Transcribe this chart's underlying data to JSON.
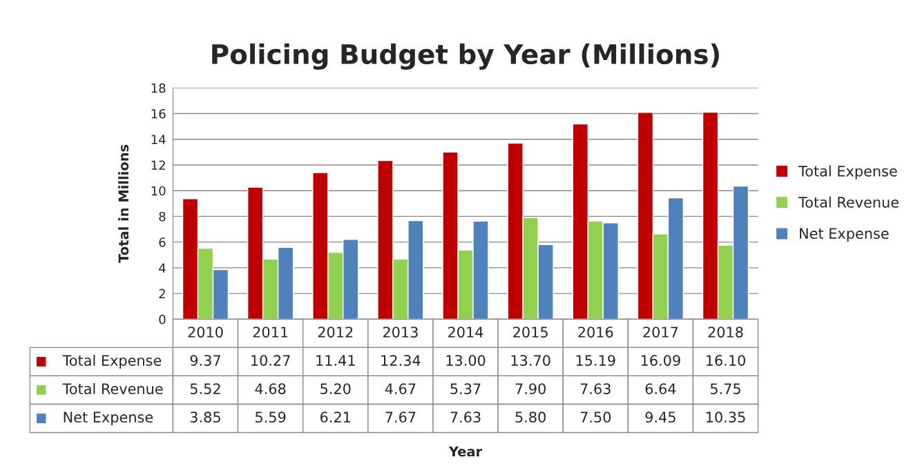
{
  "chart_data": {
    "type": "bar",
    "title": "Policing Budget by Year (Millions)",
    "annotations": [
      "Year"
    ],
    "ylabel": "Total in Millions",
    "categories": [
      "2010",
      "2011",
      "2012",
      "2013",
      "2014",
      "2015",
      "2016",
      "2017",
      "2018"
    ],
    "series": [
      {
        "name": "Total Expense",
        "color": "#c00000",
        "values": [
          9.37,
          10.27,
          11.41,
          12.34,
          13.0,
          13.7,
          15.19,
          16.09,
          16.1
        ],
        "value_labels": [
          "9.37",
          "10.27",
          "11.41",
          "12.34",
          "13.00",
          "13.70",
          "15.19",
          "16.09",
          "16.10"
        ]
      },
      {
        "name": "Total Revenue",
        "color": "#92d050",
        "values": [
          5.52,
          4.68,
          5.2,
          4.67,
          5.37,
          7.9,
          7.63,
          6.64,
          5.75
        ],
        "value_labels": [
          "5.52",
          "4.68",
          "5.20",
          "4.67",
          "5.37",
          "7.90",
          "7.63",
          "6.64",
          "5.75"
        ]
      },
      {
        "name": "Net Expense",
        "color": "#4f81bd",
        "values": [
          3.85,
          5.59,
          6.21,
          7.67,
          7.63,
          5.8,
          7.5,
          9.45,
          10.35
        ],
        "value_labels": [
          "3.85",
          "5.59",
          "6.21",
          "7.67",
          "7.63",
          "5.80",
          "7.50",
          "9.45",
          "10.35"
        ]
      }
    ],
    "ylim": [
      0,
      18
    ],
    "yticks": [
      0,
      2,
      4,
      6,
      8,
      10,
      12,
      14,
      16,
      18
    ],
    "grid": "y",
    "legend": "right"
  }
}
